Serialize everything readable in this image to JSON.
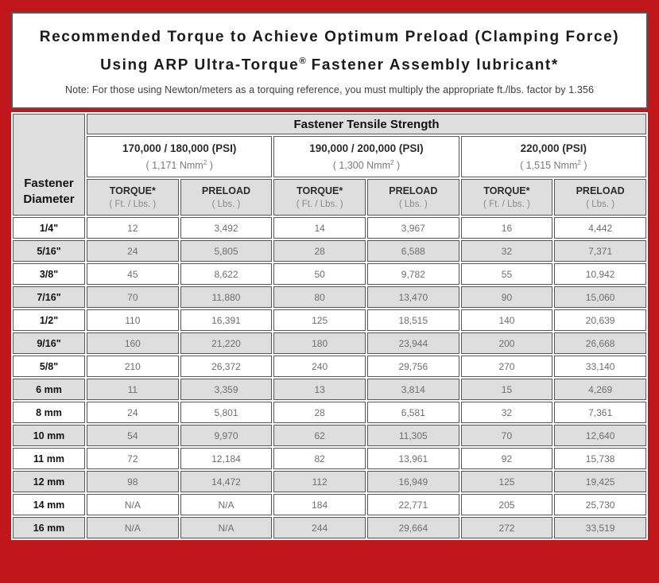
{
  "colors": {
    "frame_red": "#c0161c",
    "border_dark": "#55555a",
    "cell_gray": "#dedede",
    "cell_white": "#ffffff"
  },
  "header": {
    "title_line1": "Recommended Torque to Achieve Optimum Preload (Clamping Force)",
    "title_line2_pre": "Using ARP Ultra-Torque",
    "title_line2_sup": "®",
    "title_line2_post": " Fastener Assembly lubricant*",
    "note": "Note: For those using Newton/meters as a torquing reference, you must multiply the appropriate ft./lbs. factor by 1.356"
  },
  "table": {
    "corner_label": "Fastener Diameter",
    "group_header": "Fastener Tensile Strength",
    "strength_groups": [
      {
        "psi": "170,000 / 180,000 (PSI)",
        "nmm_pre": "( 1,171 Nmm",
        "nmm_sup": "2",
        "nmm_post": " )"
      },
      {
        "psi": "190,000 / 200,000 (PSI)",
        "nmm_pre": "( 1,300 Nmm",
        "nmm_sup": "2",
        "nmm_post": " )"
      },
      {
        "psi": "220,000 (PSI)",
        "nmm_pre": "( 1,515 Nmm",
        "nmm_sup": "2",
        "nmm_post": " )"
      }
    ],
    "sub_headers": {
      "torque_label": "TORQUE*",
      "torque_unit": "( Ft. / Lbs. )",
      "preload_label": "PRELOAD",
      "preload_unit": "( Lbs. )"
    },
    "rows": [
      {
        "diameter": "1/4\"",
        "values": [
          "12",
          "3,492",
          "14",
          "3,967",
          "16",
          "4,442"
        ]
      },
      {
        "diameter": "5/16\"",
        "values": [
          "24",
          "5,805",
          "28",
          "6,588",
          "32",
          "7,371"
        ]
      },
      {
        "diameter": "3/8\"",
        "values": [
          "45",
          "8,622",
          "50",
          "9,782",
          "55",
          "10,942"
        ]
      },
      {
        "diameter": "7/16\"",
        "values": [
          "70",
          "11,880",
          "80",
          "13,470",
          "90",
          "15,060"
        ]
      },
      {
        "diameter": "1/2\"",
        "values": [
          "110",
          "16,391",
          "125",
          "18,515",
          "140",
          "20,639"
        ]
      },
      {
        "diameter": "9/16\"",
        "values": [
          "160",
          "21,220",
          "180",
          "23,944",
          "200",
          "26,668"
        ]
      },
      {
        "diameter": "5/8\"",
        "values": [
          "210",
          "26,372",
          "240",
          "29,756",
          "270",
          "33,140"
        ]
      },
      {
        "diameter": "6 mm",
        "values": [
          "11",
          "3,359",
          "13",
          "3,814",
          "15",
          "4,269"
        ]
      },
      {
        "diameter": "8 mm",
        "values": [
          "24",
          "5,801",
          "28",
          "6,581",
          "32",
          "7,361"
        ]
      },
      {
        "diameter": "10 mm",
        "values": [
          "54",
          "9,970",
          "62",
          "11,305",
          "70",
          "12,640"
        ]
      },
      {
        "diameter": "11 mm",
        "values": [
          "72",
          "12,184",
          "82",
          "13,961",
          "92",
          "15,738"
        ]
      },
      {
        "diameter": "12 mm",
        "values": [
          "98",
          "14,472",
          "112",
          "16,949",
          "125",
          "19,425"
        ]
      },
      {
        "diameter": "14 mm",
        "values": [
          "N/A",
          "N/A",
          "184",
          "22,771",
          "205",
          "25,730"
        ]
      },
      {
        "diameter": "16 mm",
        "values": [
          "N/A",
          "N/A",
          "244",
          "29,664",
          "272",
          "33,519"
        ]
      }
    ]
  }
}
